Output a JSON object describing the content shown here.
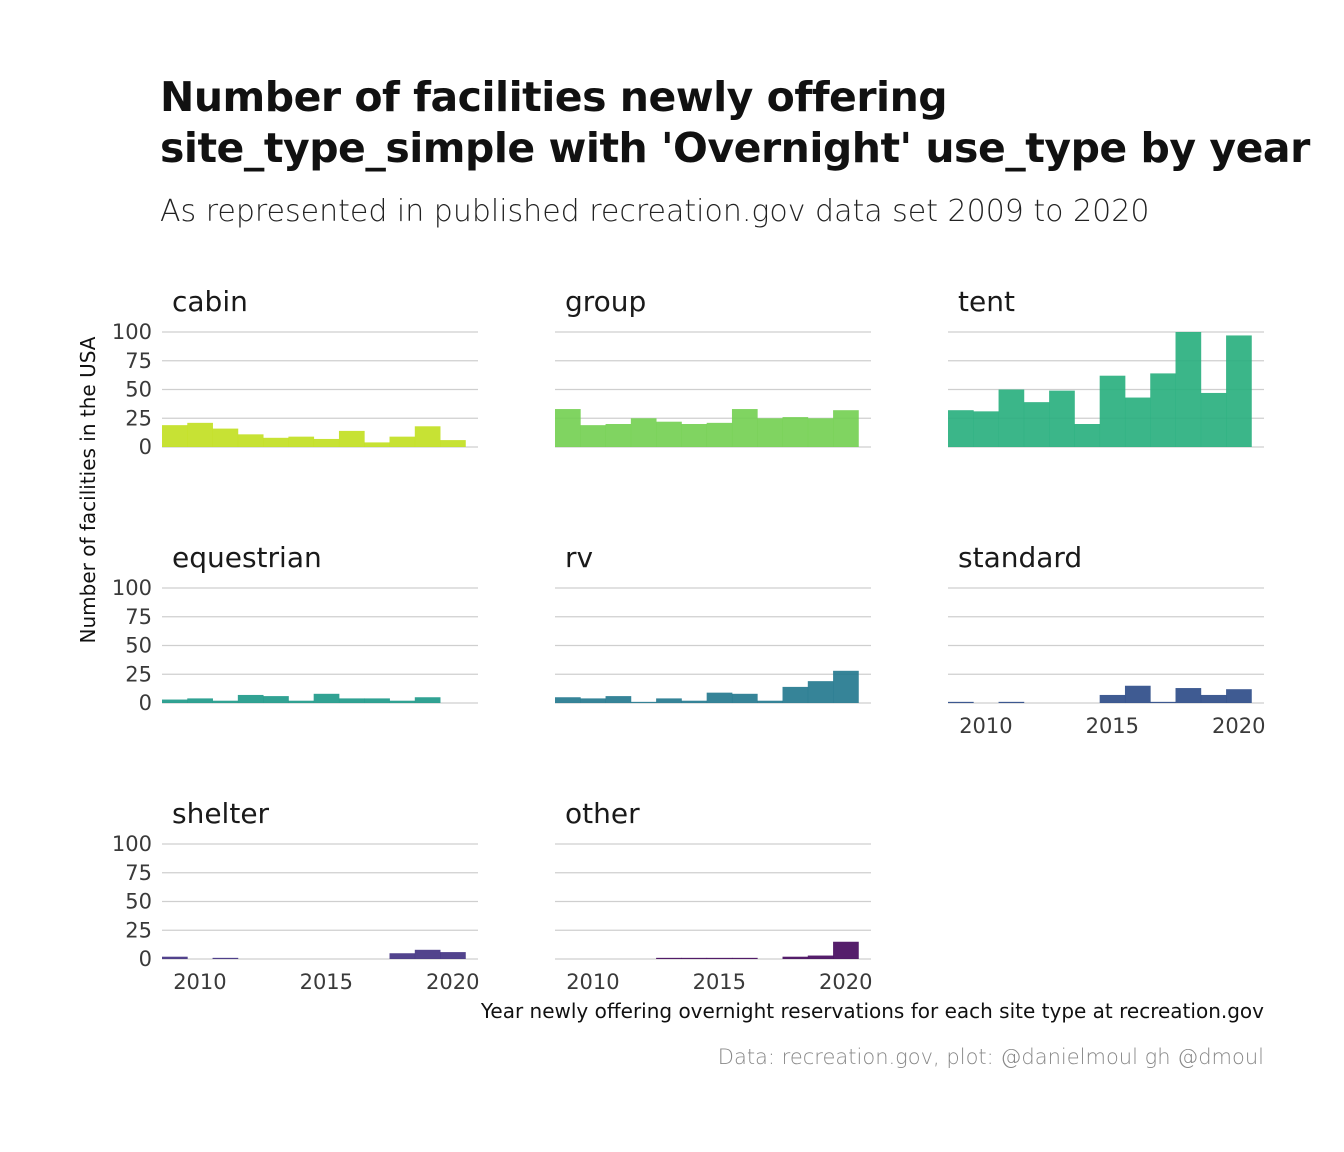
{
  "header": {
    "title_line1": "Number of facilities newly offering",
    "title_line2": "site_type_simple with 'Overnight' use_type by year",
    "subtitle": "As represented in published recreation.gov data set 2009 to 2020"
  },
  "caption": "Data: recreation.gov, plot: @danielmoul gh @dmoul",
  "chart_data": {
    "type": "bar",
    "xlabel": "Year newly offering overnight reservations for each site type at recreation.gov",
    "ylabel": "Number of facilities in the USA",
    "ylim": [
      0,
      100
    ],
    "yticks": [
      0,
      25,
      50,
      75,
      100
    ],
    "xlim": [
      2008.5,
      2021
    ],
    "xticks": [
      2010,
      2015,
      2020
    ],
    "x": [
      2009,
      2010,
      2011,
      2012,
      2013,
      2014,
      2015,
      2016,
      2017,
      2018,
      2019,
      2020
    ],
    "grid": "horizontal",
    "panels": [
      {
        "name": "cabin",
        "color": "#c2df23",
        "values": [
          19,
          21,
          16,
          11,
          8,
          9,
          7,
          14,
          4,
          9,
          18,
          6
        ]
      },
      {
        "name": "group",
        "color": "#75d054",
        "values": [
          33,
          19,
          20,
          25,
          22,
          20,
          21,
          33,
          25,
          26,
          25,
          32
        ]
      },
      {
        "name": "tent",
        "color": "#2ab07f",
        "values": [
          32,
          31,
          50,
          39,
          49,
          20,
          62,
          43,
          64,
          100,
          47,
          97
        ]
      },
      {
        "name": "equestrian",
        "color": "#1f9a8a",
        "values": [
          3,
          4,
          2,
          7,
          6,
          2,
          8,
          4,
          4,
          2,
          5,
          0
        ]
      },
      {
        "name": "rv",
        "color": "#25798f",
        "values": [
          5,
          4,
          6,
          1,
          4,
          2,
          9,
          8,
          2,
          14,
          19,
          28
        ]
      },
      {
        "name": "standard",
        "color": "#2f4d89",
        "values": [
          1,
          0,
          1,
          0,
          0,
          0,
          7,
          15,
          1,
          13,
          7,
          12
        ]
      },
      {
        "name": "shelter",
        "color": "#433383",
        "values": [
          2,
          0,
          1,
          0,
          0,
          0,
          0,
          0,
          0,
          5,
          8,
          6
        ]
      },
      {
        "name": "other",
        "color": "#460b5e",
        "values": [
          0,
          0,
          0,
          0,
          1,
          1,
          1,
          1,
          0,
          2,
          3,
          15
        ]
      }
    ]
  }
}
